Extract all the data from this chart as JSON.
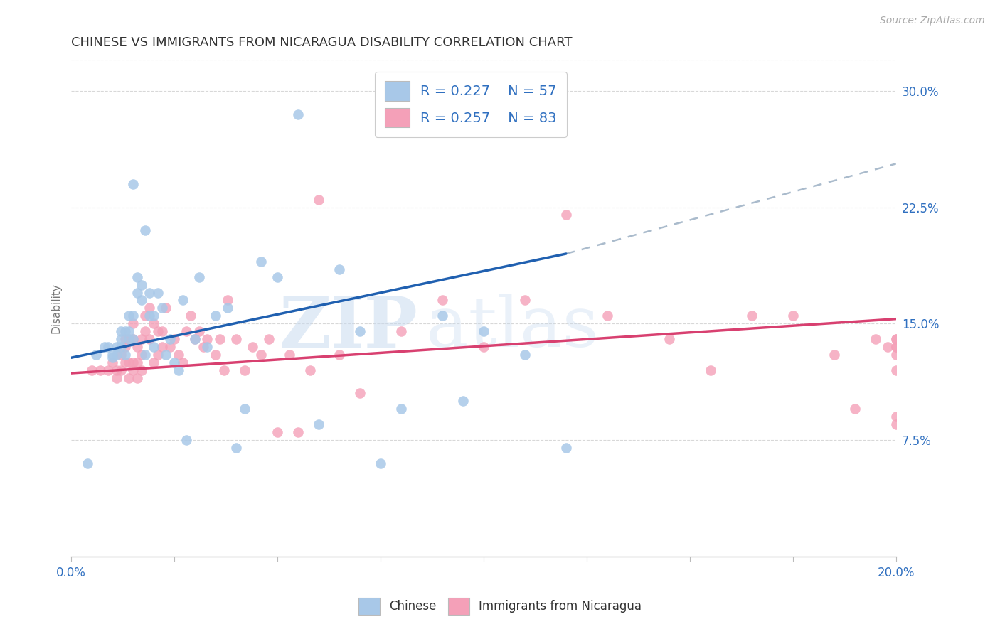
{
  "title": "CHINESE VS IMMIGRANTS FROM NICARAGUA DISABILITY CORRELATION CHART",
  "source": "Source: ZipAtlas.com",
  "ylabel": "Disability",
  "xlim": [
    0.0,
    0.2
  ],
  "ylim": [
    0.0,
    0.32
  ],
  "yticks_right": [
    0.075,
    0.15,
    0.225,
    0.3
  ],
  "ytick_right_labels": [
    "7.5%",
    "15.0%",
    "22.5%",
    "30.0%"
  ],
  "legend_r1": "R = 0.227",
  "legend_n1": "N = 57",
  "legend_r2": "R = 0.257",
  "legend_n2": "N = 83",
  "color_chinese": "#a8c8e8",
  "color_nicaragua": "#f4a0b8",
  "color_line_chinese": "#2060b0",
  "color_line_nicaragua": "#d84070",
  "color_dashed": "#aabbcc",
  "color_text_blue": "#3070c0",
  "background_color": "#ffffff",
  "grid_color": "#d8d8d8",
  "watermark_zip": "ZIP",
  "watermark_atlas": "atlas",
  "chinese_x": [
    0.004,
    0.006,
    0.008,
    0.009,
    0.01,
    0.01,
    0.011,
    0.011,
    0.012,
    0.012,
    0.012,
    0.013,
    0.013,
    0.014,
    0.014,
    0.014,
    0.015,
    0.015,
    0.015,
    0.016,
    0.016,
    0.017,
    0.017,
    0.018,
    0.018,
    0.019,
    0.019,
    0.02,
    0.02,
    0.021,
    0.022,
    0.023,
    0.024,
    0.025,
    0.026,
    0.027,
    0.028,
    0.03,
    0.031,
    0.033,
    0.035,
    0.038,
    0.04,
    0.042,
    0.046,
    0.05,
    0.055,
    0.06,
    0.065,
    0.07,
    0.075,
    0.08,
    0.09,
    0.095,
    0.1,
    0.11,
    0.12
  ],
  "chinese_y": [
    0.06,
    0.13,
    0.135,
    0.135,
    0.13,
    0.128,
    0.135,
    0.13,
    0.145,
    0.14,
    0.135,
    0.13,
    0.145,
    0.155,
    0.145,
    0.14,
    0.155,
    0.14,
    0.24,
    0.18,
    0.17,
    0.165,
    0.175,
    0.13,
    0.21,
    0.17,
    0.155,
    0.135,
    0.155,
    0.17,
    0.16,
    0.13,
    0.14,
    0.125,
    0.12,
    0.165,
    0.075,
    0.14,
    0.18,
    0.135,
    0.155,
    0.16,
    0.07,
    0.095,
    0.19,
    0.18,
    0.285,
    0.085,
    0.185,
    0.145,
    0.06,
    0.095,
    0.155,
    0.1,
    0.145,
    0.13,
    0.07
  ],
  "nicaragua_x": [
    0.005,
    0.007,
    0.009,
    0.01,
    0.011,
    0.011,
    0.012,
    0.012,
    0.013,
    0.013,
    0.013,
    0.014,
    0.014,
    0.014,
    0.015,
    0.015,
    0.015,
    0.015,
    0.016,
    0.016,
    0.016,
    0.017,
    0.017,
    0.017,
    0.018,
    0.018,
    0.019,
    0.019,
    0.02,
    0.02,
    0.021,
    0.021,
    0.022,
    0.022,
    0.023,
    0.024,
    0.025,
    0.026,
    0.027,
    0.028,
    0.029,
    0.03,
    0.031,
    0.032,
    0.033,
    0.035,
    0.036,
    0.037,
    0.038,
    0.04,
    0.042,
    0.044,
    0.046,
    0.048,
    0.05,
    0.053,
    0.055,
    0.058,
    0.06,
    0.065,
    0.07,
    0.08,
    0.09,
    0.1,
    0.11,
    0.12,
    0.13,
    0.145,
    0.155,
    0.165,
    0.175,
    0.185,
    0.19,
    0.195,
    0.198,
    0.2,
    0.2,
    0.2,
    0.2,
    0.2,
    0.2,
    0.2,
    0.2
  ],
  "nicaragua_y": [
    0.12,
    0.12,
    0.12,
    0.125,
    0.12,
    0.115,
    0.13,
    0.12,
    0.14,
    0.135,
    0.125,
    0.14,
    0.125,
    0.115,
    0.15,
    0.14,
    0.125,
    0.12,
    0.135,
    0.125,
    0.115,
    0.14,
    0.13,
    0.12,
    0.155,
    0.145,
    0.16,
    0.14,
    0.15,
    0.125,
    0.145,
    0.13,
    0.145,
    0.135,
    0.16,
    0.135,
    0.14,
    0.13,
    0.125,
    0.145,
    0.155,
    0.14,
    0.145,
    0.135,
    0.14,
    0.13,
    0.14,
    0.12,
    0.165,
    0.14,
    0.12,
    0.135,
    0.13,
    0.14,
    0.08,
    0.13,
    0.08,
    0.12,
    0.23,
    0.13,
    0.105,
    0.145,
    0.165,
    0.135,
    0.165,
    0.22,
    0.155,
    0.14,
    0.12,
    0.155,
    0.155,
    0.13,
    0.095,
    0.14,
    0.135,
    0.135,
    0.13,
    0.135,
    0.14,
    0.12,
    0.09,
    0.085,
    0.14
  ],
  "chinese_line_x": [
    0.0,
    0.12
  ],
  "chinese_line_y": [
    0.128,
    0.195
  ],
  "dashed_line_x": [
    0.12,
    0.2
  ],
  "dashed_line_y": [
    0.195,
    0.253
  ],
  "nicaragua_line_x": [
    0.0,
    0.2
  ],
  "nicaragua_line_y": [
    0.118,
    0.153
  ]
}
